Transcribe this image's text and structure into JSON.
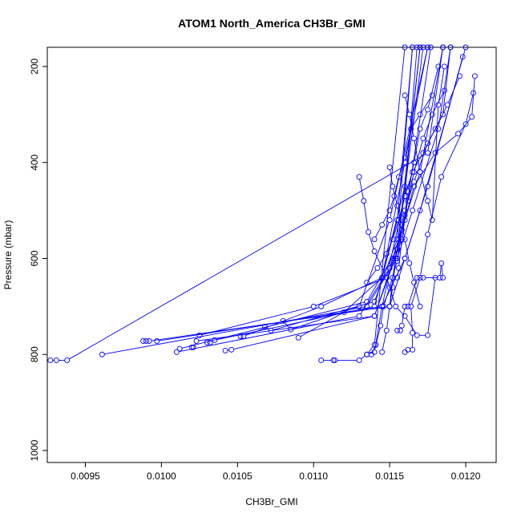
{
  "chart_data": {
    "type": "line",
    "title": "ATOM1 North_America CH3Br_GMI",
    "xlabel": "CH3Br_GMI",
    "ylabel": "Pressure (mbar)",
    "xlim": [
      0.00925,
      0.0122
    ],
    "ylim": [
      1025,
      160
    ],
    "y_inverted": true,
    "xticks": [
      0.0095,
      0.01,
      0.0105,
      0.011,
      0.0115,
      0.012
    ],
    "xtick_labels": [
      "0.0095",
      "0.0100",
      "0.0105",
      "0.0110",
      "0.0115",
      "0.0120"
    ],
    "yticks": [
      200,
      400,
      600,
      800,
      1000
    ],
    "ytick_labels": [
      "200",
      "400",
      "600",
      "800",
      "1000"
    ],
    "grid": false,
    "color": "#0000ff",
    "series": [
      {
        "x": [
          0.00927,
          0.00931,
          0.00938,
          0.01175,
          0.01185
        ],
        "y": [
          812,
          812,
          812,
          380,
          160
        ]
      },
      {
        "x": [
          0.00961,
          0.01135,
          0.01155,
          0.01165,
          0.01182,
          0.0119
        ],
        "y": [
          800,
          700,
          600,
          500,
          330,
          160
        ]
      },
      {
        "x": [
          0.00988,
          0.0099,
          0.00992,
          0.0115,
          0.0116,
          0.0117,
          0.012
        ],
        "y": [
          772,
          772,
          772,
          700,
          600,
          500,
          160
        ]
      },
      {
        "x": [
          0.00997,
          0.01145,
          0.0116,
          0.01175,
          0.01198
        ],
        "y": [
          772,
          700,
          600,
          450,
          180
        ]
      },
      {
        "x": [
          0.0101,
          0.0113,
          0.0115,
          0.0117,
          0.01185
        ],
        "y": [
          795,
          720,
          620,
          420,
          160
        ]
      },
      {
        "x": [
          0.01012,
          0.01135,
          0.01155,
          0.01172
        ],
        "y": [
          788,
          690,
          580,
          160
        ]
      },
      {
        "x": [
          0.0102,
          0.01021,
          0.01023,
          0.0114,
          0.01158,
          0.01177
        ],
        "y": [
          785,
          785,
          772,
          720,
          560,
          160
        ]
      },
      {
        "x": [
          0.01025,
          0.011,
          0.01148,
          0.0116,
          0.01168
        ],
        "y": [
          760,
          700,
          640,
          470,
          160
        ]
      },
      {
        "x": [
          0.0103,
          0.01032,
          0.01035,
          0.0114,
          0.01155,
          0.01165
        ],
        "y": [
          775,
          775,
          770,
          700,
          520,
          160
        ]
      },
      {
        "x": [
          0.01042,
          0.01046,
          0.0114,
          0.01155,
          0.0117
        ],
        "y": [
          792,
          790,
          720,
          580,
          160
        ]
      },
      {
        "x": [
          0.01052,
          0.01054,
          0.01105,
          0.01145,
          0.0116,
          0.01175
        ],
        "y": [
          762,
          762,
          700,
          640,
          400,
          160
        ]
      },
      {
        "x": [
          0.01068,
          0.01072,
          0.0114,
          0.01155,
          0.01165
        ],
        "y": [
          742,
          750,
          690,
          560,
          160
        ]
      },
      {
        "x": [
          0.0108,
          0.01085,
          0.0113,
          0.0115,
          0.01175
        ],
        "y": [
          730,
          748,
          700,
          520,
          160
        ]
      },
      {
        "x": [
          0.0109,
          0.0112,
          0.01145,
          0.0116,
          0.0117
        ],
        "y": [
          765,
          712,
          640,
          450,
          160
        ]
      },
      {
        "x": [
          0.01105,
          0.01113,
          0.01114,
          0.0113,
          0.01135,
          0.0114,
          0.0116
        ],
        "y": [
          812,
          812,
          812,
          812,
          800,
          780,
          160
        ]
      },
      {
        "x": [
          0.01135,
          0.0114,
          0.01145,
          0.01152,
          0.0116,
          0.01166,
          0.0118,
          0.01195,
          0.01204,
          0.01206
        ],
        "y": [
          800,
          795,
          700,
          600,
          520,
          450,
          380,
          340,
          305,
          220
        ]
      },
      {
        "x": [
          0.0116,
          0.01162,
          0.01165,
          0.01165,
          0.01164,
          0.0117,
          0.01175,
          0.01184,
          0.012,
          0.01205
        ],
        "y": [
          795,
          790,
          790,
          755,
          700,
          640,
          550,
          430,
          320,
          255
        ]
      },
      {
        "x": [
          0.01155,
          0.01157,
          0.01158,
          0.0116,
          0.01162,
          0.01168,
          0.01172,
          0.01183,
          0.01184,
          0.01185
        ],
        "y": [
          750,
          750,
          740,
          700,
          700,
          640,
          640,
          640,
          610,
          640
        ]
      },
      {
        "x": [
          0.0113,
          0.01133,
          0.01136,
          0.0114,
          0.01148,
          0.01154,
          0.0116,
          0.01168,
          0.01175,
          0.0118
        ],
        "y": [
          430,
          480,
          545,
          585,
          640,
          700,
          720,
          760,
          760,
          640
        ]
      },
      {
        "x": [
          0.01138,
          0.01141,
          0.01144,
          0.01146,
          0.0115,
          0.01155,
          0.01158
        ],
        "y": [
          800,
          780,
          740,
          700,
          660,
          605,
          540
        ]
      },
      {
        "x": [
          0.01145,
          0.01148,
          0.0115,
          0.01152,
          0.01156,
          0.0116,
          0.01166,
          0.01175,
          0.01185,
          0.0119
        ],
        "y": [
          795,
          750,
          700,
          640,
          560,
          500,
          440,
          360,
          300,
          160
        ]
      },
      {
        "x": [
          0.0115,
          0.01152,
          0.01154,
          0.01158,
          0.01162,
          0.01166,
          0.01172,
          0.01178,
          0.01186
        ],
        "y": [
          700,
          660,
          600,
          540,
          480,
          420,
          350,
          300,
          250
        ]
      },
      {
        "x": [
          0.01155,
          0.01156,
          0.01158,
          0.0116,
          0.01162,
          0.01166,
          0.0117,
          0.01175,
          0.01182
        ],
        "y": [
          640,
          620,
          560,
          510,
          460,
          400,
          330,
          290,
          200
        ]
      },
      {
        "x": [
          0.0114,
          0.01145,
          0.0115,
          0.01153,
          0.01156,
          0.0116,
          0.01164,
          0.0117,
          0.01178
        ],
        "y": [
          560,
          530,
          500,
          470,
          430,
          390,
          330,
          300,
          260
        ]
      },
      {
        "x": [
          0.01135,
          0.01142,
          0.01148,
          0.01152,
          0.01156,
          0.0116,
          0.01165,
          0.01172,
          0.0118,
          0.01188,
          0.01196
        ],
        "y": [
          650,
          620,
          590,
          560,
          520,
          470,
          420,
          380,
          330,
          280,
          220
        ]
      },
      {
        "x": [
          0.0115,
          0.01152,
          0.01155,
          0.01158,
          0.0116,
          0.01163,
          0.01166,
          0.0117
        ],
        "y": [
          410,
          450,
          490,
          530,
          560,
          610,
          650,
          700
        ]
      },
      {
        "x": [
          0.0116,
          0.01163,
          0.01166,
          0.0117,
          0.01175,
          0.01178,
          0.01182,
          0.01186
        ],
        "y": [
          260,
          300,
          350,
          420,
          480,
          520,
          280,
          200
        ]
      }
    ]
  }
}
